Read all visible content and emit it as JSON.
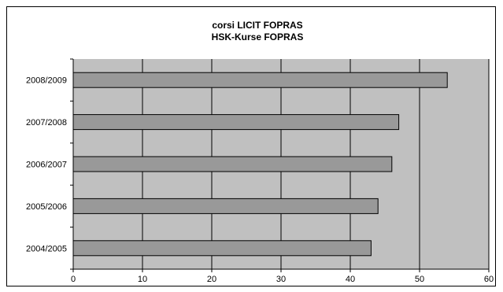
{
  "chart_data": {
    "type": "bar",
    "orientation": "horizontal",
    "title": [
      "corsi LICIT FOPRAS",
      "HSK-Kurse FOPRAS"
    ],
    "xlabel": "",
    "ylabel": "",
    "categories": [
      "2004/2005",
      "2005/2006",
      "2006/2007",
      "2007/2008",
      "2008/2009"
    ],
    "values": [
      43,
      44,
      46,
      47,
      54
    ],
    "xlim": [
      0,
      60
    ],
    "xticks": [
      0,
      10,
      20,
      30,
      40,
      50,
      60
    ],
    "grid": "vertical",
    "legend": "none",
    "colors": {
      "plot_background": "#c0c0c0",
      "bar_fill": "#999999",
      "bar_stroke": "#000000",
      "gridline": "#000000"
    }
  }
}
